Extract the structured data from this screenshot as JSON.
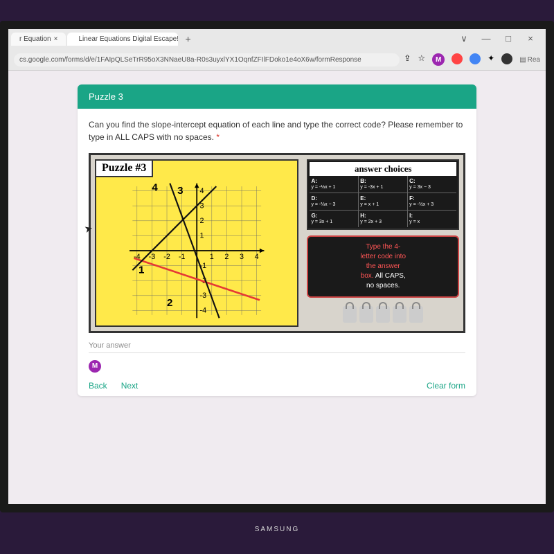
{
  "window": {
    "minimize": "—",
    "maximize": "□",
    "close": "×",
    "chevron": "∨"
  },
  "browser": {
    "tabs": [
      {
        "title": "r Equation",
        "active": false
      },
      {
        "title": "Linear Equations Digital Escape!",
        "active": true
      }
    ],
    "new_tab": "+",
    "url": "cs.google.com/forms/d/e/1FAIpQLSeTrR95oX3NNaeU8a-R0s3uyxlYX1OqnfZFIlFDoko1e4oX6w/formResponse",
    "toolbar": {
      "share": "⇪",
      "star": "☆",
      "ext_m": "M",
      "reading": "Rea"
    }
  },
  "form": {
    "header": "Puzzle 3",
    "question": "Can you find the slope-intercept equation of each line and type the correct code? Please remember to type in ALL CAPS with no spaces.",
    "required": "*",
    "answer_placeholder": "Your answer",
    "back": "Back",
    "next": "Next",
    "clear": "Clear form"
  },
  "puzzle": {
    "label": "Puzzle #3",
    "graph": {
      "background": "#ffe94a",
      "grid_color": "#666",
      "axis_color": "#000",
      "xlim": [
        -4,
        4
      ],
      "ylim": [
        -4,
        4
      ],
      "tick_step": 1,
      "x_ticks": [
        "-4",
        "-3",
        "-2",
        "-1",
        "1",
        "2",
        "3",
        "4"
      ],
      "y_ticks": [
        "4",
        "3",
        "2",
        "1",
        "-1",
        "-2",
        "-3",
        "-4"
      ],
      "lines": [
        {
          "num": "1",
          "label_pos": [
            -3.8,
            -1.6
          ],
          "color": "#e53935",
          "width": 2.5,
          "p1": [
            -4,
            -1
          ],
          "p2": [
            4,
            -4
          ],
          "arrows": true
        },
        {
          "num": "2",
          "label_pos": [
            -2.0,
            -3.8
          ],
          "color": "#e53935",
          "width": 2.5,
          "p1": [
            -4,
            -1
          ],
          "p2": [
            4,
            -4
          ],
          "arrows": true
        },
        {
          "num": "3",
          "label_pos": [
            -1.2,
            3.8
          ],
          "color": "#111",
          "width": 2.0,
          "p1": [
            -2.3,
            4.5
          ],
          "p2": [
            2.3,
            -4.5
          ],
          "arrows": true
        },
        {
          "num": "4",
          "label_pos": [
            -3.2,
            4.0
          ],
          "color": "#111",
          "width": 2.0,
          "p1": [
            -4.2,
            -1.2
          ],
          "p2": [
            1.2,
            4.2
          ],
          "arrows": true
        }
      ]
    },
    "answers": {
      "header": "answer choices",
      "cells": [
        {
          "lbl": "A:",
          "eq": "y = -⅓x + 1"
        },
        {
          "lbl": "B:",
          "eq": "y = -3x + 1"
        },
        {
          "lbl": "C:",
          "eq": "y = 3x − 3"
        },
        {
          "lbl": "D:",
          "eq": "y = -⅓x − 3"
        },
        {
          "lbl": "E:",
          "eq": "y = x + 1"
        },
        {
          "lbl": "F:",
          "eq": "y = -½x + 3"
        },
        {
          "lbl": "G:",
          "eq": "y = 3x + 1"
        },
        {
          "lbl": "H:",
          "eq": "y = 2x + 3"
        },
        {
          "lbl": "I:",
          "eq": "y = x"
        }
      ]
    },
    "codebox": {
      "l1": "Type the 4-",
      "l2": "letter code into",
      "l3": "the answer",
      "l4": "box.",
      "l5": "All CAPS,",
      "l6": "no spaces."
    },
    "lock_count": 5
  },
  "monitor_brand": "SAMSUNG"
}
